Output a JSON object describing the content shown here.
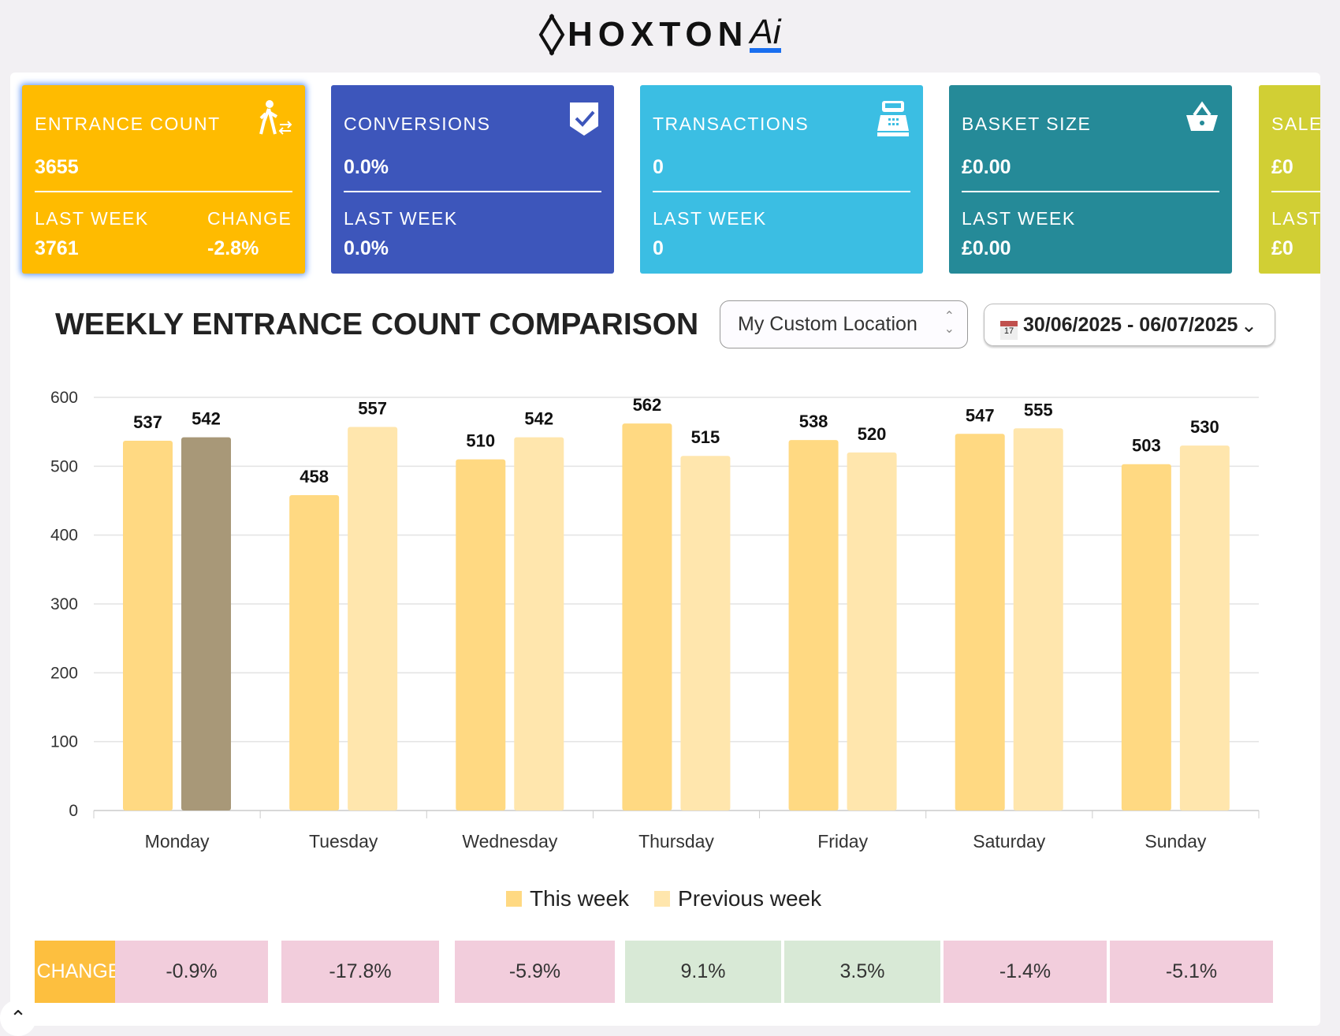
{
  "brand": {
    "name": "HOXTON",
    "suffix": "Ai"
  },
  "cards": [
    {
      "title": "ENTRANCE COUNT",
      "value": "3655",
      "last_week_label": "LAST WEEK",
      "last_week": "3761",
      "change_label": "CHANGE",
      "change": "-2.8%",
      "icon": "person-walking-icon",
      "color": "#ffbb00"
    },
    {
      "title": "CONVERSIONS",
      "value": "0.0%",
      "last_week_label": "LAST WEEK",
      "last_week": "0.0%",
      "icon": "shield-check-icon",
      "color": "#3d56bb"
    },
    {
      "title": "TRANSACTIONS",
      "value": "0",
      "last_week_label": "LAST WEEK",
      "last_week": "0",
      "icon": "cash-register-icon",
      "color": "#3bbee3"
    },
    {
      "title": "BASKET SIZE",
      "value": "£0.00",
      "last_week_label": "LAST WEEK",
      "last_week": "£0.00",
      "icon": "basket-icon",
      "color": "#258a98"
    },
    {
      "title": "SALE",
      "value": "£0",
      "last_week_label": "LAST",
      "last_week": "£0",
      "color": "#d1cf34"
    }
  ],
  "section": {
    "title": "WEEKLY ENTRANCE COUNT COMPARISON",
    "location": "My Custom Location",
    "date_range": "30/06/2025 - 06/07/2025"
  },
  "chart_data": {
    "type": "bar",
    "categories": [
      "Monday",
      "Tuesday",
      "Wednesday",
      "Thursday",
      "Friday",
      "Saturday",
      "Sunday"
    ],
    "series": [
      {
        "name": "This week",
        "values": [
          537,
          458,
          510,
          562,
          538,
          547,
          503
        ],
        "color": "#ffd982"
      },
      {
        "name": "Previous week",
        "values": [
          542,
          557,
          542,
          515,
          520,
          555,
          530
        ],
        "color": "#ffe6ad"
      }
    ],
    "highlight_color": "#a89878",
    "ylim": [
      0,
      600
    ],
    "yticks": [
      "0",
      "100",
      "200",
      "300",
      "400",
      "500",
      "600"
    ],
    "grid": true,
    "legend": "bottom"
  },
  "change_row": {
    "label": "CHANGE",
    "values": [
      "-0.9%",
      "-17.8%",
      "-5.9%",
      "9.1%",
      "3.5%",
      "-1.4%",
      "-5.1%"
    ],
    "negative_color": "#f2cddc",
    "positive_color": "#d8e9d6",
    "label_color": "#fdbf3f"
  }
}
